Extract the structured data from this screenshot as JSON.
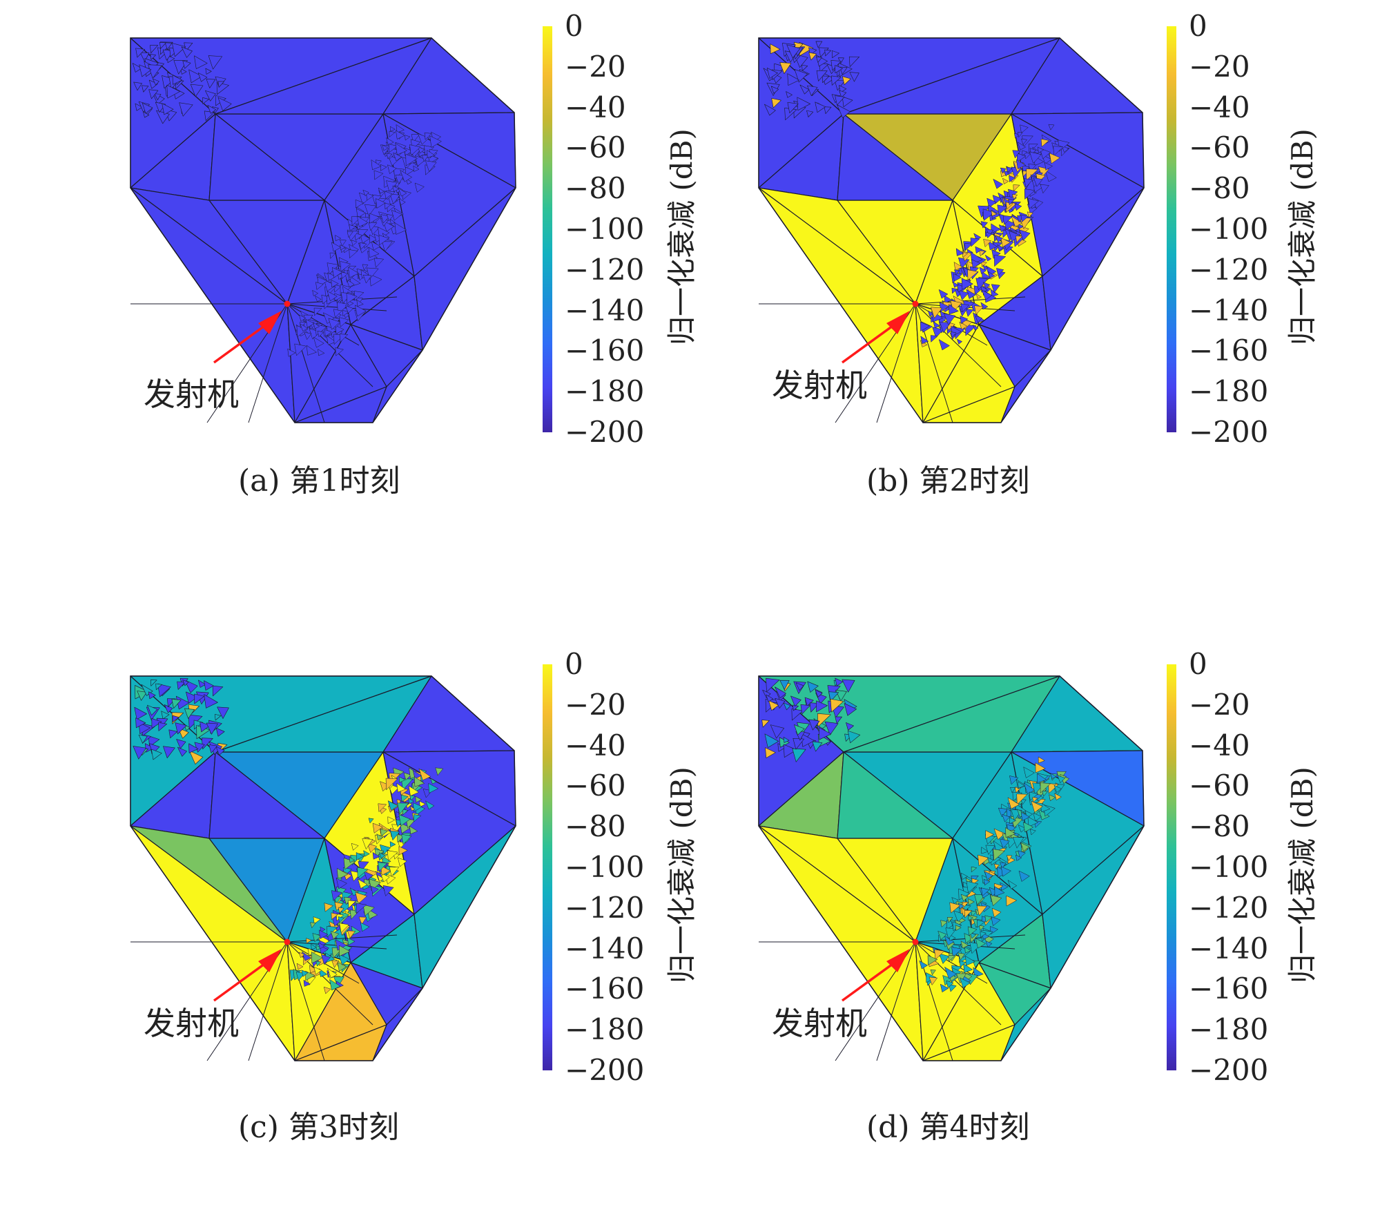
{
  "figure": {
    "transmitter_label": "发射机",
    "colorbar_title": "归一化衰减 (dB)",
    "colorbar_ticks": [
      "0",
      "−20",
      "−40",
      "−60",
      "−80",
      "−100",
      "−120",
      "−140",
      "−160",
      "−180",
      "−200"
    ],
    "colormap": [
      "#3e26a8",
      "#4743f0",
      "#2f6ef6",
      "#1a91d8",
      "#13b1c0",
      "#2ec197",
      "#7ac461",
      "#c6b832",
      "#f6bd31",
      "#f9f71a"
    ],
    "panels": [
      {
        "id": "a",
        "caption": "(a) 第1时刻"
      },
      {
        "id": "b",
        "caption": "(b) 第2时刻"
      },
      {
        "id": "c",
        "caption": "(c) 第3时刻"
      },
      {
        "id": "d",
        "caption": "(d) 第4时刻"
      }
    ]
  }
}
